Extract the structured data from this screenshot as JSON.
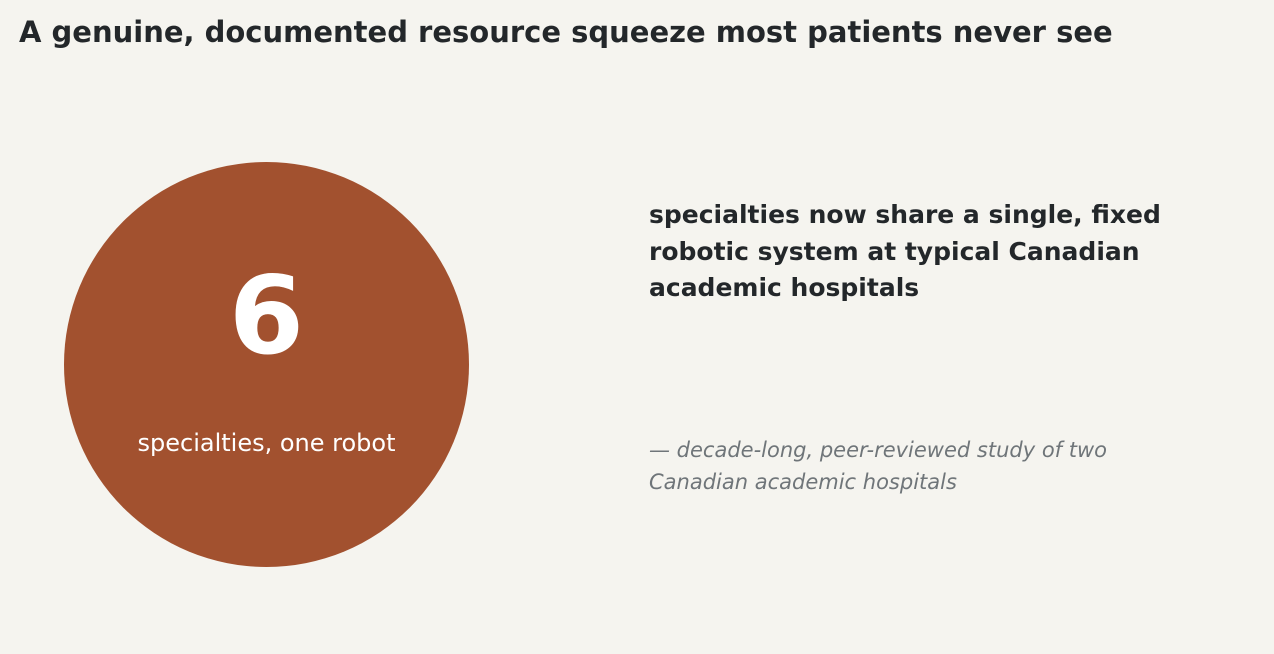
{
  "headline": "A genuine, documented resource squeeze most patients never see",
  "stat": {
    "number": "6",
    "caption": "specialties, one robot",
    "color": "#a2512f"
  },
  "statement": "specialties now share a single, fixed robotic system at typical Canadian academic hospitals",
  "source": "— decade-long, peer-reviewed study of two Canadian academic hospitals"
}
